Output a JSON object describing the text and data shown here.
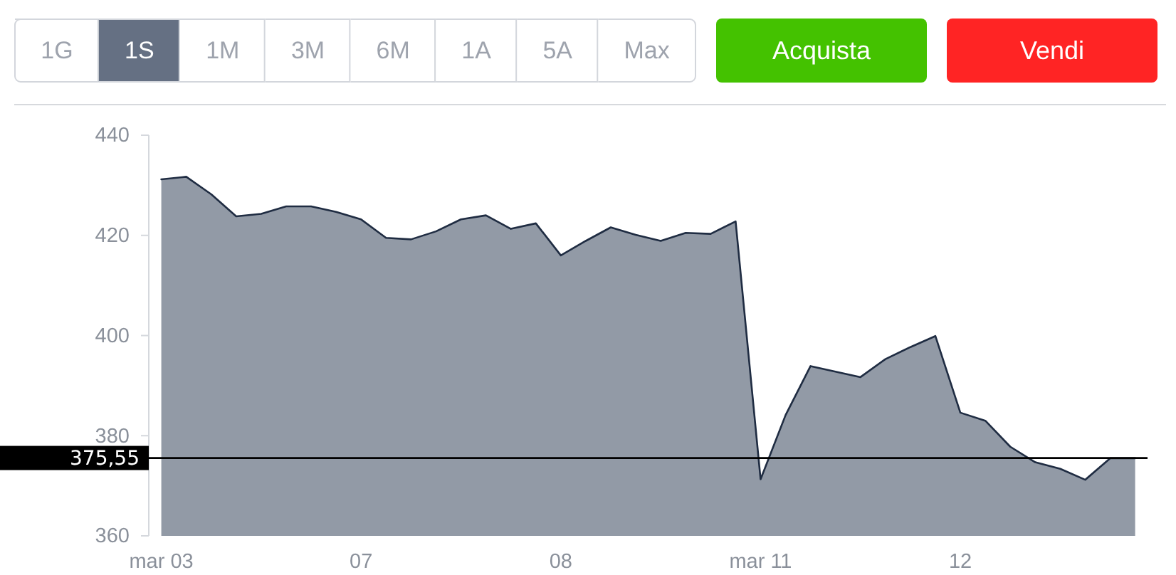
{
  "chart_data": {
    "type": "area",
    "categories": [
      "mar 03",
      null,
      null,
      null,
      null,
      null,
      null,
      null,
      "07",
      null,
      null,
      null,
      null,
      null,
      null,
      null,
      "08",
      null,
      null,
      null,
      null,
      null,
      null,
      null,
      "mar 11",
      null,
      null,
      null,
      null,
      null,
      null,
      null,
      "12",
      null,
      null,
      null,
      null,
      null,
      null,
      null
    ],
    "values": [
      431.2,
      431.7,
      428.2,
      423.8,
      424.3,
      425.8,
      425.8,
      424.7,
      423.2,
      419.5,
      419.2,
      420.8,
      423.2,
      424.0,
      421.3,
      422.4,
      416.0,
      418.9,
      421.6,
      420.1,
      418.9,
      420.5,
      420.3,
      422.8,
      371.3,
      384.1,
      393.9,
      392.8,
      391.7,
      395.3,
      397.7,
      399.9,
      384.6,
      383.0,
      377.8,
      374.7,
      373.4,
      371.2,
      375.5,
      375.5
    ],
    "color": "#929aa6",
    "ylim": [
      360,
      440
    ],
    "yticks": [
      360,
      380,
      400,
      420,
      440
    ],
    "ref_lines": [
      {
        "axis": "y",
        "value": 375.55,
        "label": "375,55",
        "color": "#000000"
      }
    ],
    "annotations": [
      "1G",
      "1S",
      "1M",
      "3M",
      "6M",
      "1A",
      "5A",
      "Max",
      "Acquista",
      "Vendi"
    ]
  }
}
